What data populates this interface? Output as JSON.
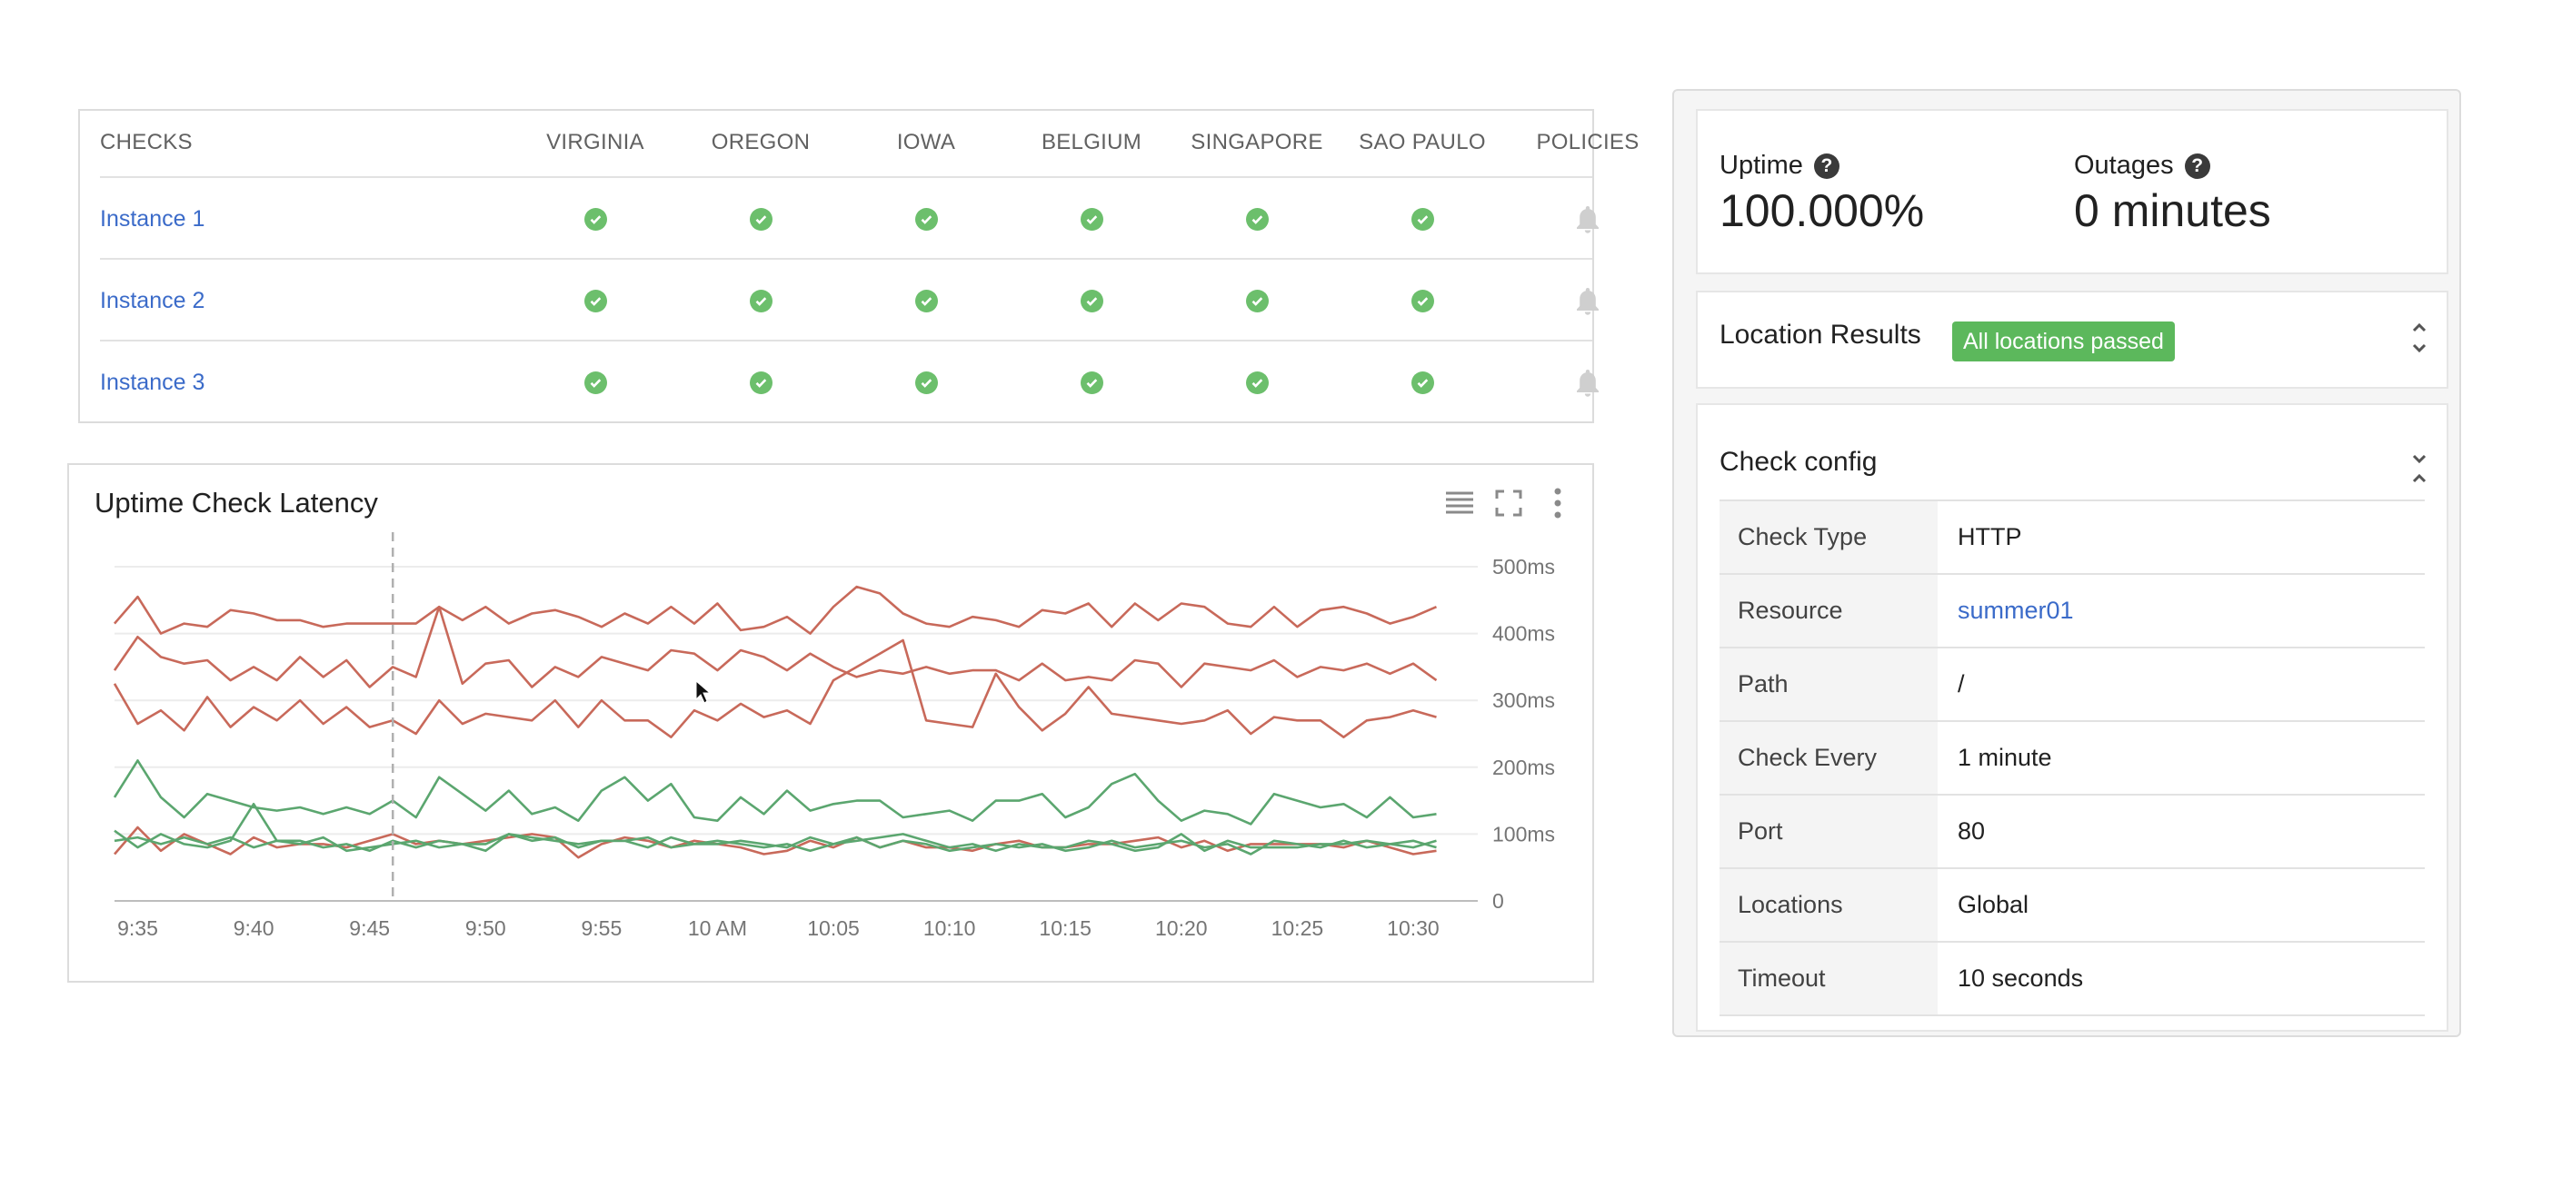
{
  "checks": {
    "columns": [
      "CHECKS",
      "VIRGINIA",
      "OREGON",
      "IOWA",
      "BELGIUM",
      "SINGAPORE",
      "SAO PAULO",
      "POLICIES"
    ],
    "rows": [
      {
        "name": "Instance 1",
        "statuses": [
          "ok",
          "ok",
          "ok",
          "ok",
          "ok",
          "ok"
        ],
        "policy": "bell-icon"
      },
      {
        "name": "Instance 2",
        "statuses": [
          "ok",
          "ok",
          "ok",
          "ok",
          "ok",
          "ok"
        ],
        "policy": "bell-icon"
      },
      {
        "name": "Instance 3",
        "statuses": [
          "ok",
          "ok",
          "ok",
          "ok",
          "ok",
          "ok"
        ],
        "policy": "bell-icon"
      }
    ],
    "status_color": "#6cbf6c",
    "link_color": "#3b6bc9"
  },
  "latency_chart": {
    "title": "Uptime Check Latency",
    "tools": [
      "legend-icon",
      "fullscreen-icon",
      "more-vert-icon"
    ]
  },
  "chart_data": {
    "type": "line",
    "title": "Uptime Check Latency",
    "xlabel": "",
    "ylabel": "",
    "x_tick_labels": [
      "9:35",
      "9:40",
      "9:45",
      "9:50",
      "9:55",
      "10 AM",
      "10:05",
      "10:10",
      "10:15",
      "10:20",
      "10:25",
      "10:30"
    ],
    "y_tick_labels": [
      "0",
      "100ms",
      "200ms",
      "300ms",
      "400ms",
      "500ms"
    ],
    "ylim": [
      0,
      500
    ],
    "x_minutes": [
      34,
      35,
      36,
      37,
      38,
      39,
      40,
      41,
      42,
      43,
      44,
      45,
      46,
      47,
      48,
      49,
      50,
      51,
      52,
      53,
      54,
      55,
      56,
      57,
      58,
      59,
      60,
      61,
      62,
      63,
      64,
      65,
      66,
      67,
      68,
      69,
      70,
      71,
      72,
      73,
      74,
      75,
      76,
      77,
      78,
      79,
      80,
      81,
      82,
      83,
      84,
      85,
      86,
      87,
      88,
      89,
      90,
      91
    ],
    "cursor_x_minute": 46,
    "grid": true,
    "series": [
      {
        "color": "#c8695a",
        "values": [
          415,
          455,
          400,
          415,
          410,
          435,
          430,
          420,
          420,
          410,
          415,
          415,
          415,
          415,
          440,
          420,
          440,
          415,
          430,
          435,
          425,
          410,
          430,
          415,
          440,
          415,
          445,
          405,
          410,
          425,
          400,
          440,
          470,
          460,
          430,
          415,
          410,
          425,
          420,
          410,
          435,
          430,
          445,
          410,
          445,
          420,
          445,
          440,
          415,
          410,
          440,
          410,
          435,
          440,
          430,
          415,
          425,
          440
        ]
      },
      {
        "color": "#c8695a",
        "values": [
          345,
          395,
          365,
          355,
          360,
          330,
          350,
          330,
          365,
          335,
          360,
          320,
          350,
          335,
          440,
          325,
          355,
          360,
          320,
          350,
          335,
          365,
          355,
          345,
          375,
          370,
          345,
          375,
          365,
          345,
          370,
          350,
          335,
          345,
          340,
          350,
          340,
          345,
          345,
          330,
          355,
          330,
          335,
          330,
          360,
          355,
          320,
          355,
          350,
          345,
          360,
          335,
          350,
          345,
          355,
          340,
          355,
          330
        ]
      },
      {
        "color": "#c8695a",
        "values": [
          325,
          265,
          285,
          255,
          305,
          260,
          290,
          270,
          300,
          265,
          290,
          260,
          270,
          250,
          300,
          265,
          280,
          275,
          270,
          300,
          260,
          300,
          270,
          270,
          245,
          285,
          270,
          295,
          275,
          285,
          265,
          330,
          350,
          370,
          390,
          270,
          265,
          260,
          340,
          290,
          255,
          280,
          320,
          280,
          275,
          270,
          265,
          270,
          285,
          250,
          275,
          270,
          270,
          245,
          270,
          275,
          285,
          275
        ]
      },
      {
        "color": "#5ba66f",
        "values": [
          155,
          210,
          155,
          125,
          160,
          150,
          140,
          135,
          140,
          130,
          140,
          130,
          150,
          125,
          185,
          160,
          135,
          165,
          130,
          140,
          120,
          165,
          185,
          150,
          175,
          125,
          120,
          155,
          130,
          165,
          135,
          145,
          150,
          150,
          125,
          130,
          135,
          120,
          150,
          150,
          160,
          125,
          140,
          175,
          190,
          150,
          120,
          135,
          130,
          115,
          160,
          150,
          140,
          145,
          125,
          155,
          125,
          130
        ]
      },
      {
        "color": "#c8695a",
        "values": [
          70,
          110,
          75,
          100,
          85,
          70,
          95,
          80,
          85,
          85,
          80,
          90,
          100,
          85,
          90,
          85,
          90,
          95,
          100,
          95,
          65,
          85,
          95,
          90,
          80,
          90,
          85,
          80,
          70,
          75,
          90,
          80,
          95,
          80,
          90,
          80,
          80,
          75,
          85,
          90,
          80,
          80,
          85,
          85,
          90,
          95,
          80,
          90,
          75,
          85,
          85,
          85,
          85,
          80,
          90,
          80,
          70,
          75
        ]
      },
      {
        "color": "#5ba66f",
        "values": [
          105,
          80,
          100,
          85,
          80,
          90,
          145,
          90,
          90,
          80,
          85,
          75,
          90,
          80,
          90,
          85,
          85,
          100,
          95,
          90,
          85,
          90,
          90,
          80,
          95,
          85,
          85,
          90,
          85,
          80,
          95,
          85,
          90,
          95,
          100,
          90,
          80,
          85,
          75,
          85,
          80,
          80,
          90,
          85,
          75,
          80,
          100,
          75,
          90,
          80,
          80,
          80,
          85,
          85,
          90,
          85,
          80,
          90
        ]
      },
      {
        "color": "#5ba66f",
        "values": [
          90,
          95,
          85,
          95,
          85,
          95,
          80,
          90,
          85,
          95,
          75,
          80,
          85,
          90,
          80,
          85,
          75,
          100,
          90,
          95,
          80,
          90,
          90,
          95,
          80,
          85,
          90,
          85,
          80,
          85,
          75,
          85,
          95,
          80,
          90,
          85,
          75,
          80,
          85,
          80,
          85,
          75,
          80,
          90,
          80,
          85,
          90,
          80,
          85,
          70,
          90,
          85,
          80,
          90,
          80,
          85,
          90,
          80
        ]
      }
    ]
  },
  "status": {
    "uptime_label": "Uptime",
    "uptime_value": "100.000%",
    "outages_label": "Outages",
    "outages_value": "0 minutes",
    "help_glyph": "?"
  },
  "location": {
    "title": "Location Results",
    "badge": "All locations passed",
    "badge_color": "#5cb85c"
  },
  "config": {
    "title": "Check config",
    "rows": [
      {
        "key": "Check Type",
        "value": "HTTP",
        "link": false
      },
      {
        "key": "Resource",
        "value": "summer01",
        "link": true
      },
      {
        "key": "Path",
        "value": "/",
        "link": false
      },
      {
        "key": "Check Every",
        "value": "1 minute",
        "link": false
      },
      {
        "key": "Port",
        "value": "80",
        "link": false
      },
      {
        "key": "Locations",
        "value": "Global",
        "link": false
      },
      {
        "key": "Timeout",
        "value": "10 seconds",
        "link": false
      }
    ]
  }
}
